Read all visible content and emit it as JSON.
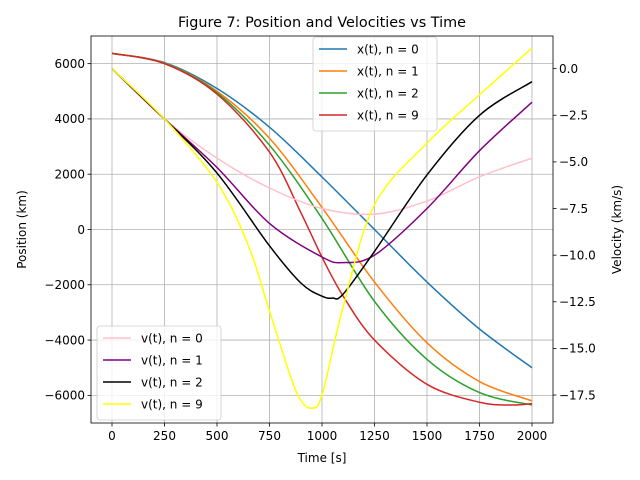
{
  "chart_data": {
    "type": "line",
    "title": "Figure 7: Position and Velocities vs Time",
    "xlabel": "Time [s]",
    "ylabel_left": "Position (km)",
    "ylabel_right": "Velocity (km/s)",
    "xlim": [
      -100,
      2100
    ],
    "ylim_left": [
      -7000,
      7000
    ],
    "ylim_right": [
      -19.0,
      1.75
    ],
    "xticks": [
      0,
      250,
      500,
      750,
      1000,
      1250,
      1500,
      1750,
      2000
    ],
    "yticks_left": [
      -6000,
      -4000,
      -2000,
      0,
      2000,
      4000,
      6000
    ],
    "ytick_labels_left": [
      "−6000",
      "−4000",
      "−2000",
      "0",
      "2000",
      "4000",
      "6000"
    ],
    "yticks_right": [
      0.0,
      -2.5,
      -5.0,
      -7.5,
      -10.0,
      -12.5,
      -15.0,
      -17.5
    ],
    "ytick_labels_right": [
      "0.0",
      "−2.5",
      "−5.0",
      "−7.5",
      "−10.0",
      "−12.5",
      "−15.0",
      "−17.5"
    ],
    "grid": true,
    "legend_position_series": "top-right",
    "legend_velocity_series": "bottom-left",
    "position_series": [
      {
        "name": "x(t), n = 0",
        "color": "#1f77b4",
        "x": [
          0,
          250,
          500,
          750,
          1000,
          1250,
          1500,
          1750,
          2000
        ],
        "y": [
          6371,
          6040,
          5100,
          3700,
          1900,
          0,
          -1900,
          -3600,
          -5000
        ]
      },
      {
        "name": "x(t), n = 1",
        "color": "#ff7f0e",
        "x": [
          0,
          250,
          500,
          750,
          1000,
          1250,
          1500,
          1750,
          2000
        ],
        "y": [
          6371,
          6020,
          5000,
          3300,
          800,
          -1900,
          -4100,
          -5500,
          -6200
        ]
      },
      {
        "name": "x(t), n = 2",
        "color": "#2ca02c",
        "x": [
          0,
          250,
          500,
          750,
          1000,
          1250,
          1500,
          1750,
          2000
        ],
        "y": [
          6371,
          6010,
          4950,
          3050,
          400,
          -2600,
          -4700,
          -5900,
          -6350
        ]
      },
      {
        "name": "x(t), n = 9",
        "color": "#d62728",
        "x": [
          0,
          250,
          500,
          750,
          900,
          1000,
          1100,
          1250,
          1500,
          1750,
          1900,
          2000
        ],
        "y": [
          6371,
          6000,
          4900,
          2800,
          600,
          -1000,
          -2400,
          -4000,
          -5600,
          -6250,
          -6350,
          -6300
        ]
      }
    ],
    "velocity_series": [
      {
        "name": "v(t), n = 0",
        "color": "#ffc0cb",
        "x": [
          0,
          250,
          500,
          750,
          1000,
          1250,
          1500,
          1750,
          2000
        ],
        "y": [
          0.0,
          -2.7,
          -4.8,
          -6.4,
          -7.5,
          -7.8,
          -7.1,
          -5.8,
          -4.8
        ]
      },
      {
        "name": "v(t), n = 1",
        "color": "#800080",
        "x": [
          0,
          250,
          500,
          750,
          1000,
          1100,
          1250,
          1500,
          1750,
          2000
        ],
        "y": [
          0.0,
          -2.7,
          -5.3,
          -8.3,
          -10.1,
          -10.4,
          -10.0,
          -7.5,
          -4.4,
          -1.8
        ]
      },
      {
        "name": "v(t), n = 2",
        "color": "#000000",
        "x": [
          0,
          250,
          500,
          750,
          900,
          1000,
          1050,
          1100,
          1250,
          1500,
          1750,
          2000
        ],
        "y": [
          0.0,
          -2.7,
          -5.6,
          -9.5,
          -11.5,
          -12.2,
          -12.3,
          -12.1,
          -9.8,
          -5.7,
          -2.5,
          -0.7
        ]
      },
      {
        "name": "v(t), n = 9",
        "color": "#ffff00",
        "x": [
          0,
          250,
          500,
          650,
          750,
          850,
          900,
          950,
          1000,
          1100,
          1250,
          1500,
          1750,
          2000
        ],
        "y": [
          0.0,
          -2.7,
          -6.1,
          -9.5,
          -13.0,
          -16.5,
          -17.8,
          -18.2,
          -17.5,
          -12.8,
          -7.3,
          -4.0,
          -1.4,
          1.1
        ]
      }
    ]
  }
}
